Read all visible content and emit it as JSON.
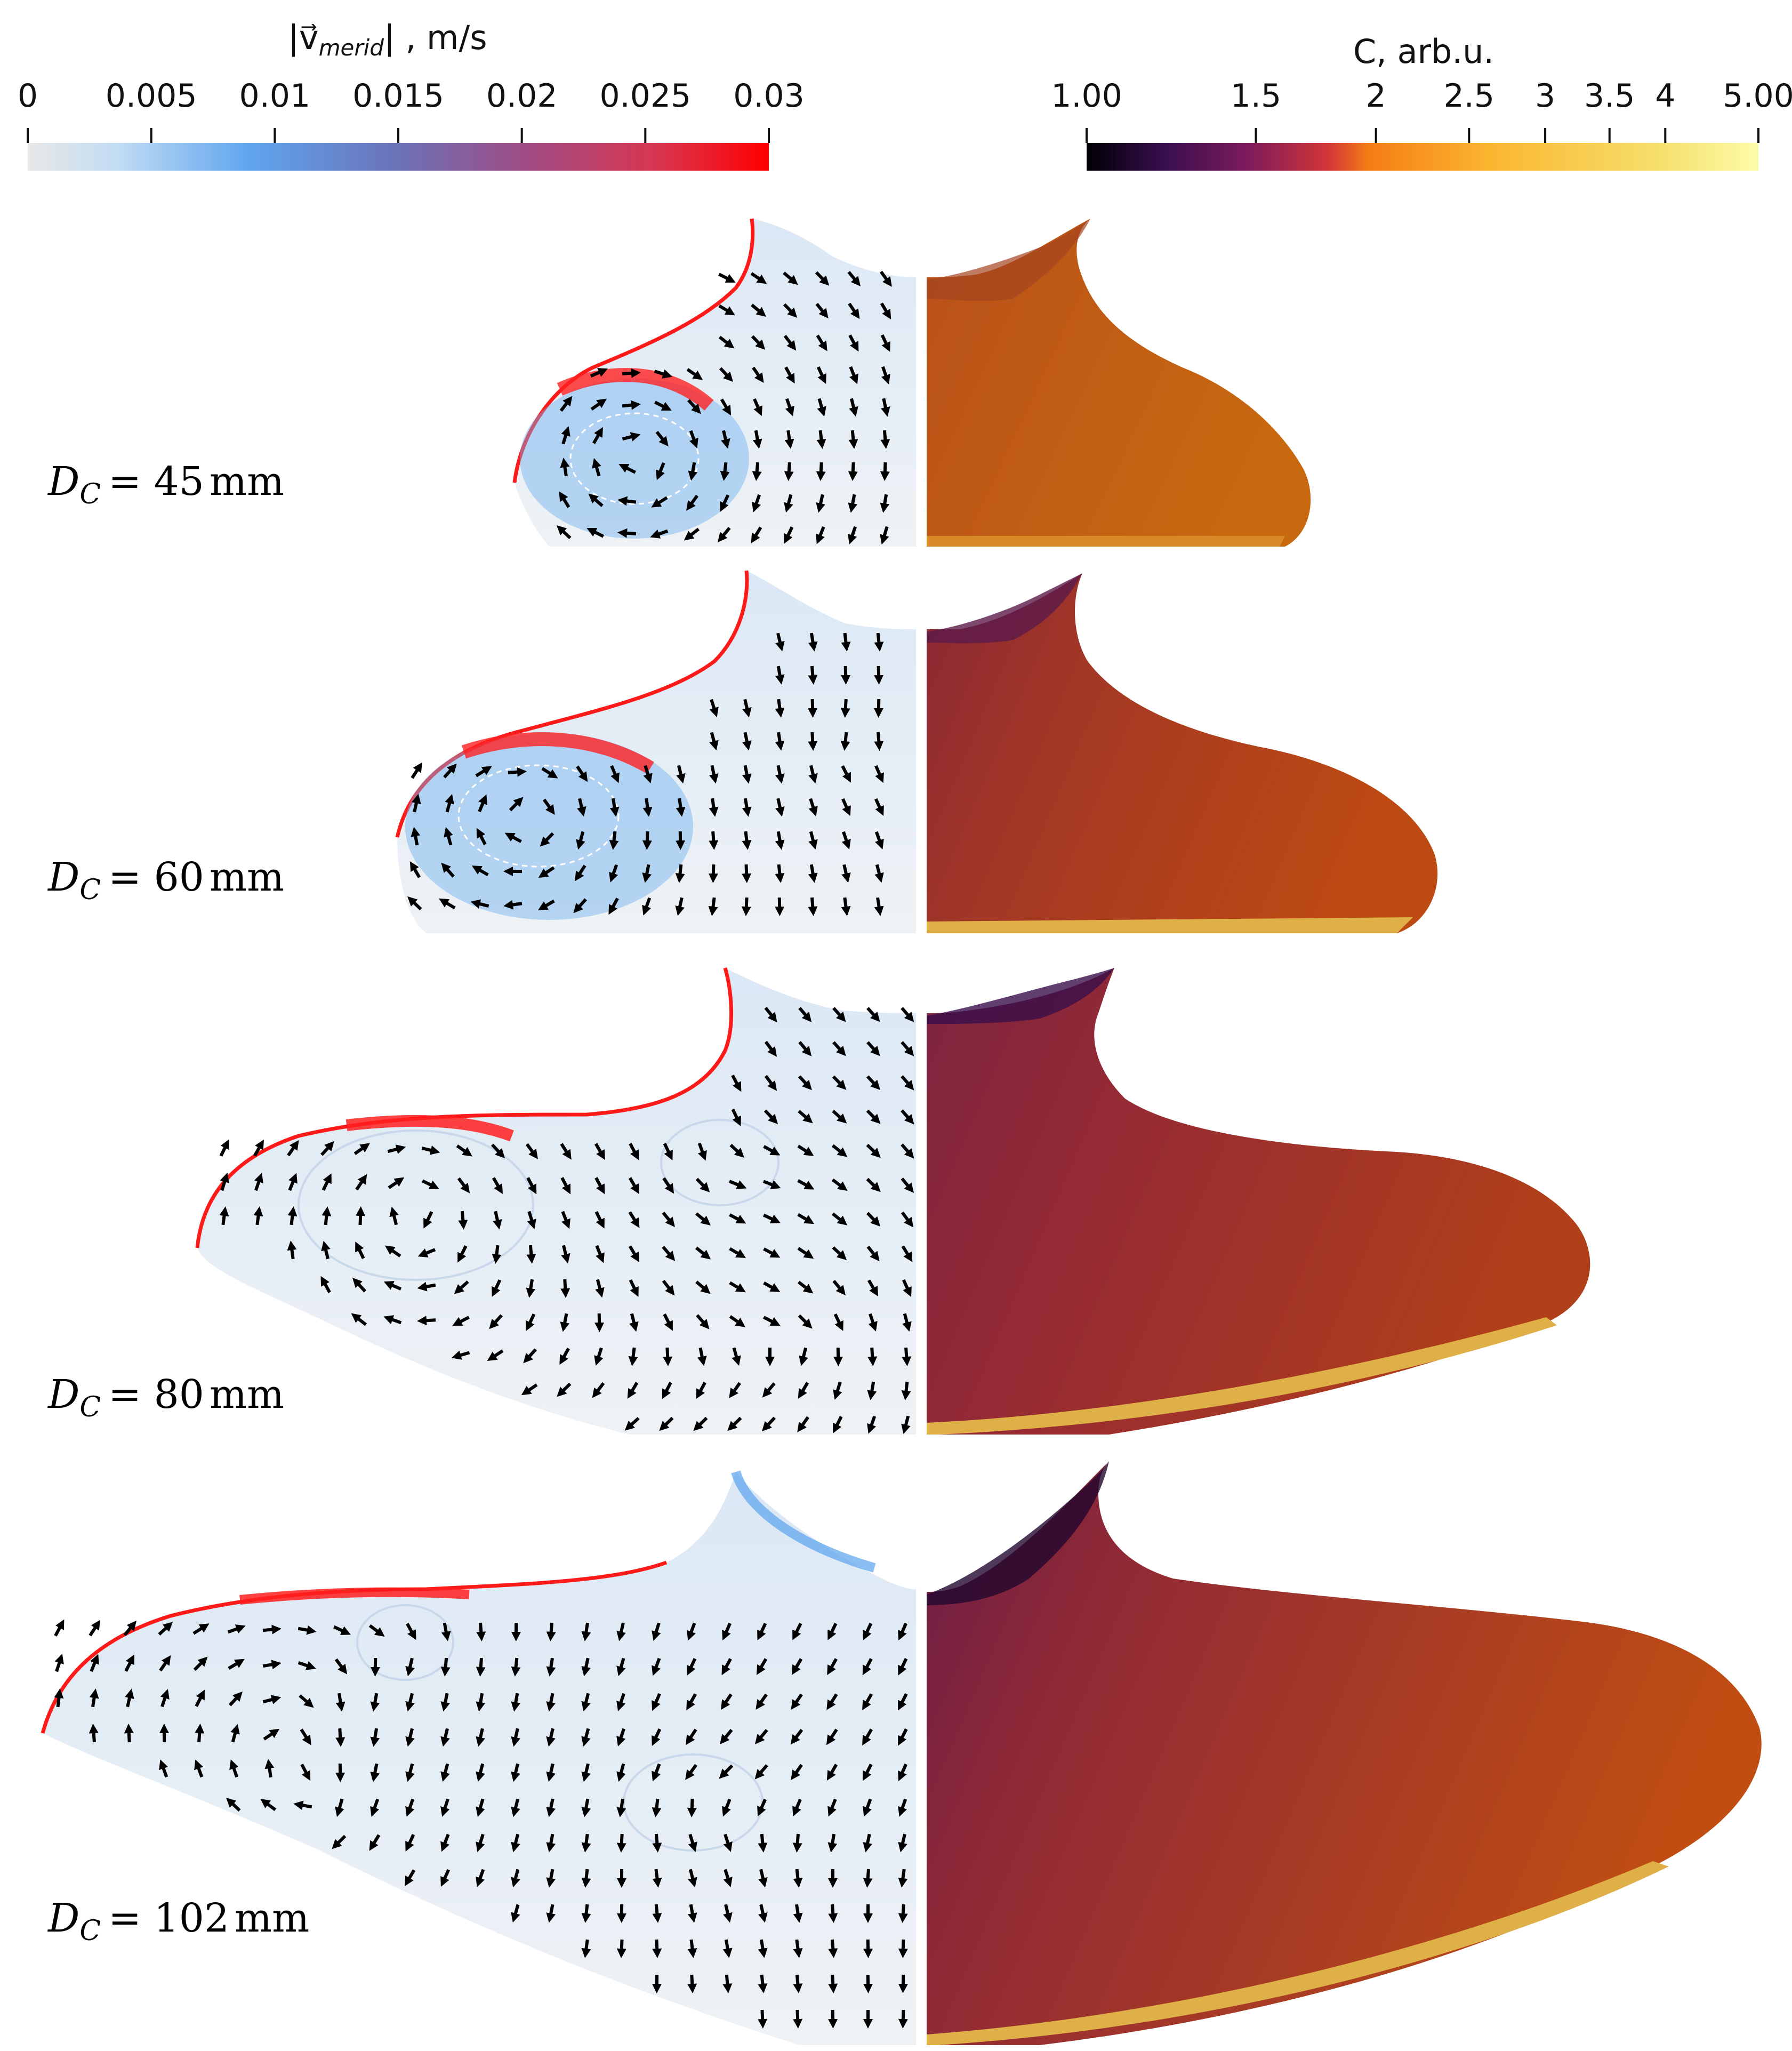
{
  "colorbar_velocity": {
    "title_symbol": "|v⃗",
    "title_sub": "merid",
    "title_rest": "| , m/s",
    "ticks": [
      "0",
      "0.005",
      "0.01",
      "0.015",
      "0.02",
      "0.025",
      "0.03"
    ],
    "range": [
      0,
      0.03
    ],
    "colors": [
      "#e8e8e6",
      "#a8cdf3",
      "#5aa3ee",
      "#6a6cb0",
      "#a84e82",
      "#d8364f",
      "#ff0000"
    ]
  },
  "colorbar_concentration": {
    "title": "C, arb.u.",
    "ticks": [
      "1.00",
      "1.5",
      "2",
      "2.5",
      "3",
      "3.5",
      "4",
      "5.00"
    ],
    "range": [
      1,
      5
    ],
    "scale": "log",
    "colors": [
      "#000004",
      "#3b0f4f",
      "#7d1b5c",
      "#c02e41",
      "#f26a1b",
      "#fbb32f",
      "#f6e16a",
      "#fcfca8"
    ]
  },
  "panels": [
    {
      "D_symbol": "D",
      "D_sub": "C",
      "eq": "= ",
      "value": "45",
      "unit": "mm"
    },
    {
      "D_symbol": "D",
      "D_sub": "C",
      "eq": "= ",
      "value": "60",
      "unit": "mm"
    },
    {
      "D_symbol": "D",
      "D_sub": "C",
      "eq": "= ",
      "value": "80",
      "unit": "mm"
    },
    {
      "D_symbol": "D",
      "D_sub": "C",
      "eq": "= ",
      "value": "102",
      "unit": "mm"
    }
  ],
  "field_colors": {
    "vel_surface": "#ff1a1a",
    "vel_near": "#7fb8f2",
    "vel_mid": "#b9d9f6",
    "vel_far": "#e9eef2",
    "vortex": "#8c5a9e",
    "arrow": "#000000",
    "conc_dark": "#3a0f4a",
    "conc_purple": "#7a2050",
    "conc_red": "#95282f",
    "conc_brown": "#b24016",
    "conc_orange": "#c45a10",
    "conc_yellow": "#e8b53a"
  }
}
